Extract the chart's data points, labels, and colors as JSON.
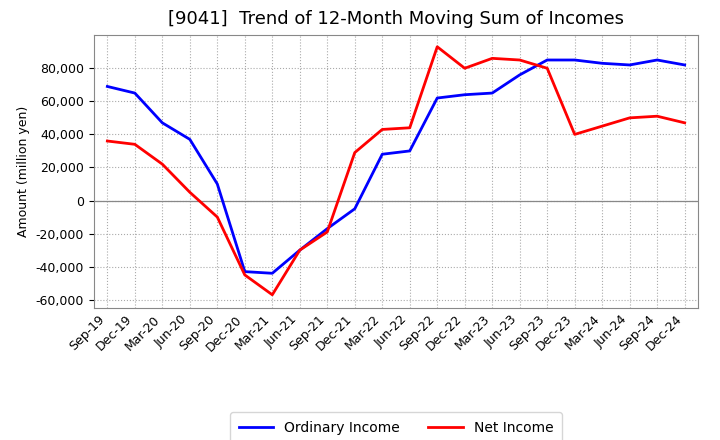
{
  "title": "[9041]  Trend of 12-Month Moving Sum of Incomes",
  "ylabel": "Amount (million yen)",
  "background_color": "#ffffff",
  "plot_bg_color": "#ffffff",
  "grid_color": "#aaaaaa",
  "ylim": [
    -65000,
    100000
  ],
  "yticks": [
    -60000,
    -40000,
    -20000,
    0,
    20000,
    40000,
    60000,
    80000
  ],
  "x_labels": [
    "Sep-19",
    "Dec-19",
    "Mar-20",
    "Jun-20",
    "Sep-20",
    "Dec-20",
    "Mar-21",
    "Jun-21",
    "Sep-21",
    "Dec-21",
    "Mar-22",
    "Jun-22",
    "Sep-22",
    "Dec-22",
    "Mar-23",
    "Jun-23",
    "Sep-23",
    "Dec-23",
    "Mar-24",
    "Jun-24",
    "Sep-24",
    "Dec-24"
  ],
  "ordinary_income": [
    69000,
    65000,
    47000,
    37000,
    10000,
    -43000,
    -44000,
    -30000,
    -17000,
    -5000,
    28000,
    30000,
    62000,
    64000,
    65000,
    76000,
    85000,
    85000,
    83000,
    82000,
    85000,
    82000
  ],
  "net_income": [
    36000,
    34000,
    22000,
    5000,
    -10000,
    -45000,
    -57000,
    -30000,
    -19000,
    29000,
    43000,
    44000,
    93000,
    80000,
    86000,
    85000,
    80000,
    40000,
    45000,
    50000,
    51000,
    47000
  ],
  "ordinary_color": "#0000ff",
  "net_color": "#ff0000",
  "line_width": 2.0,
  "title_fontsize": 13,
  "label_fontsize": 9,
  "tick_fontsize": 9,
  "legend_fontsize": 10
}
